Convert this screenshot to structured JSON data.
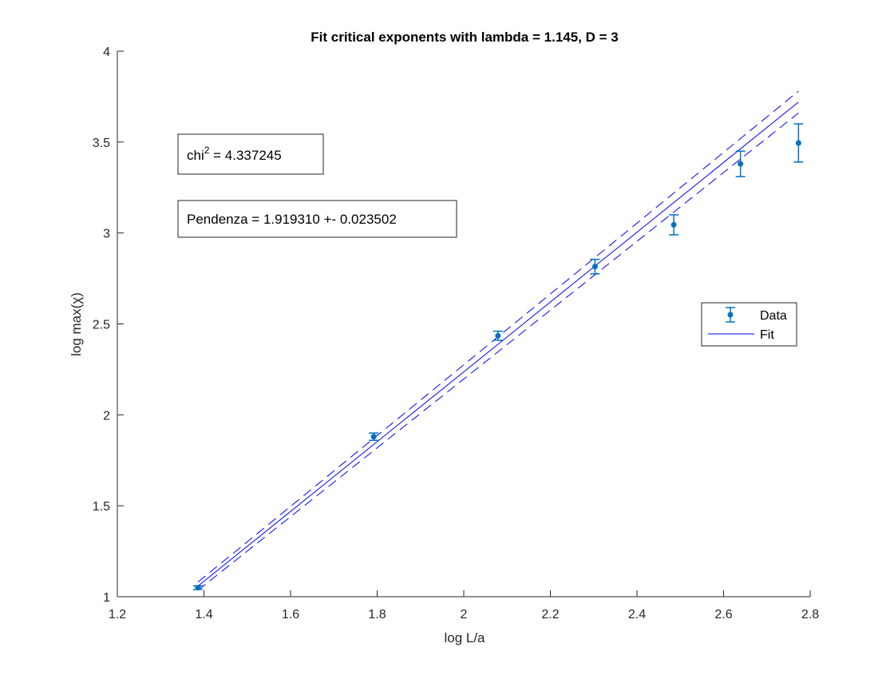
{
  "chart_data": {
    "type": "scatter",
    "title": "Fit critical exponents with lambda = 1.145, D = 3",
    "xlabel": "log L/a",
    "ylabel": "log max(χ)",
    "xlim": [
      1.2,
      2.8
    ],
    "ylim": [
      1,
      4
    ],
    "xticks": [
      1.2,
      1.4,
      1.6,
      1.8,
      2,
      2.2,
      2.4,
      2.6,
      2.8
    ],
    "yticks": [
      1,
      1.5,
      2,
      2.5,
      3,
      3.5,
      4
    ],
    "xtick_labels": [
      "1.2",
      "1.4",
      "1.6",
      "1.8",
      "2",
      "2.2",
      "2.4",
      "2.6",
      "2.8"
    ],
    "ytick_labels": [
      "1",
      "1.5",
      "2",
      "2.5",
      "3",
      "3.5",
      "4"
    ],
    "grid": false,
    "legend_position": "right",
    "colors": {
      "data": "#0072bd",
      "fit": "#0000ff",
      "axis": "#262626"
    },
    "series": [
      {
        "name": "Data",
        "type": "errorbar",
        "x": [
          1.386,
          1.792,
          2.079,
          2.303,
          2.485,
          2.639,
          2.773
        ],
        "y": [
          1.05,
          1.88,
          2.435,
          2.815,
          3.045,
          3.38,
          3.495
        ],
        "err": [
          0.01,
          0.02,
          0.025,
          0.04,
          0.055,
          0.07,
          0.105
        ]
      },
      {
        "name": "Fit",
        "type": "line",
        "x": [
          1.386,
          2.773
        ],
        "y": [
          1.058,
          3.72
        ]
      },
      {
        "type": "line-dashed",
        "x": [
          1.386,
          2.773
        ],
        "y": [
          1.08,
          3.78
        ]
      },
      {
        "type": "line-dashed",
        "x": [
          1.386,
          2.773
        ],
        "y": [
          1.035,
          3.66
        ]
      }
    ],
    "annotations": {
      "chi_prefix": "chi",
      "chi_sup": "2",
      "chi_value": " = 4.337245",
      "pendenza": "Pendenza = 1.919310 +- 0.023502"
    }
  }
}
